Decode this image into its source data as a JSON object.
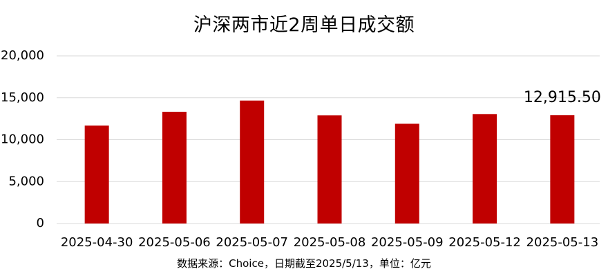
{
  "title": "沪深两市近2周单日成交额",
  "source": "数据来源：Choice，日期截至2025/5/13，单位：亿元",
  "colors": {
    "bar": "#c00000",
    "grid": "#d9d9d9"
  },
  "chart_data": {
    "type": "bar",
    "categories": [
      "2025-04-30",
      "2025-05-06",
      "2025-05-07",
      "2025-05-08",
      "2025-05-09",
      "2025-05-12",
      "2025-05-13"
    ],
    "values": [
      11690,
      13330,
      14670,
      12900,
      11900,
      13060,
      12915.5
    ],
    "ylim": [
      0,
      20000
    ],
    "yticks": [
      0,
      5000,
      10000,
      15000,
      20000
    ],
    "ytick_labels": [
      "0",
      "5,000",
      "10,000",
      "15,000",
      "20,000"
    ],
    "data_labels": [
      {
        "index": 6,
        "text": "12,915.50"
      }
    ],
    "grid": true,
    "legend": "none"
  }
}
